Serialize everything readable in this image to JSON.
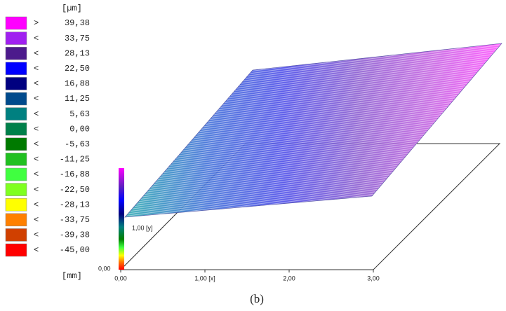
{
  "legend": {
    "unit": "[µm]",
    "footer_unit": "[mm]",
    "entries": [
      {
        "sign": ">",
        "label": "39,38",
        "color": "#ff00ff"
      },
      {
        "sign": "<",
        "label": "33,75",
        "color": "#a020f0"
      },
      {
        "sign": "<",
        "label": "28,13",
        "color": "#4c1a8c"
      },
      {
        "sign": "<",
        "label": "22,50",
        "color": "#0000ff"
      },
      {
        "sign": "<",
        "label": "16,88",
        "color": "#000080"
      },
      {
        "sign": "<",
        "label": "11,25",
        "color": "#004a8c"
      },
      {
        "sign": "<",
        "label": "5,63",
        "color": "#008080"
      },
      {
        "sign": "<",
        "label": "0,00",
        "color": "#00804a"
      },
      {
        "sign": "<",
        "label": "-5,63",
        "color": "#007a00"
      },
      {
        "sign": "<",
        "label": "-11,25",
        "color": "#20c020"
      },
      {
        "sign": "<",
        "label": "-16,88",
        "color": "#40ff40"
      },
      {
        "sign": "<",
        "label": "-22,50",
        "color": "#80ff20"
      },
      {
        "sign": "<",
        "label": "-28,13",
        "color": "#ffff00"
      },
      {
        "sign": "<",
        "label": "-33,75",
        "color": "#ff8000"
      },
      {
        "sign": "<",
        "label": "-39,38",
        "color": "#d04000"
      },
      {
        "sign": "<",
        "label": "-45,00",
        "color": "#ff0000"
      }
    ]
  },
  "axes": {
    "x_labels": [
      "0,00",
      "1,00 [x]",
      "2,00",
      "3,00"
    ],
    "y_label": "1,00 [y]",
    "z_label": "0,00"
  },
  "caption": "(b)"
}
